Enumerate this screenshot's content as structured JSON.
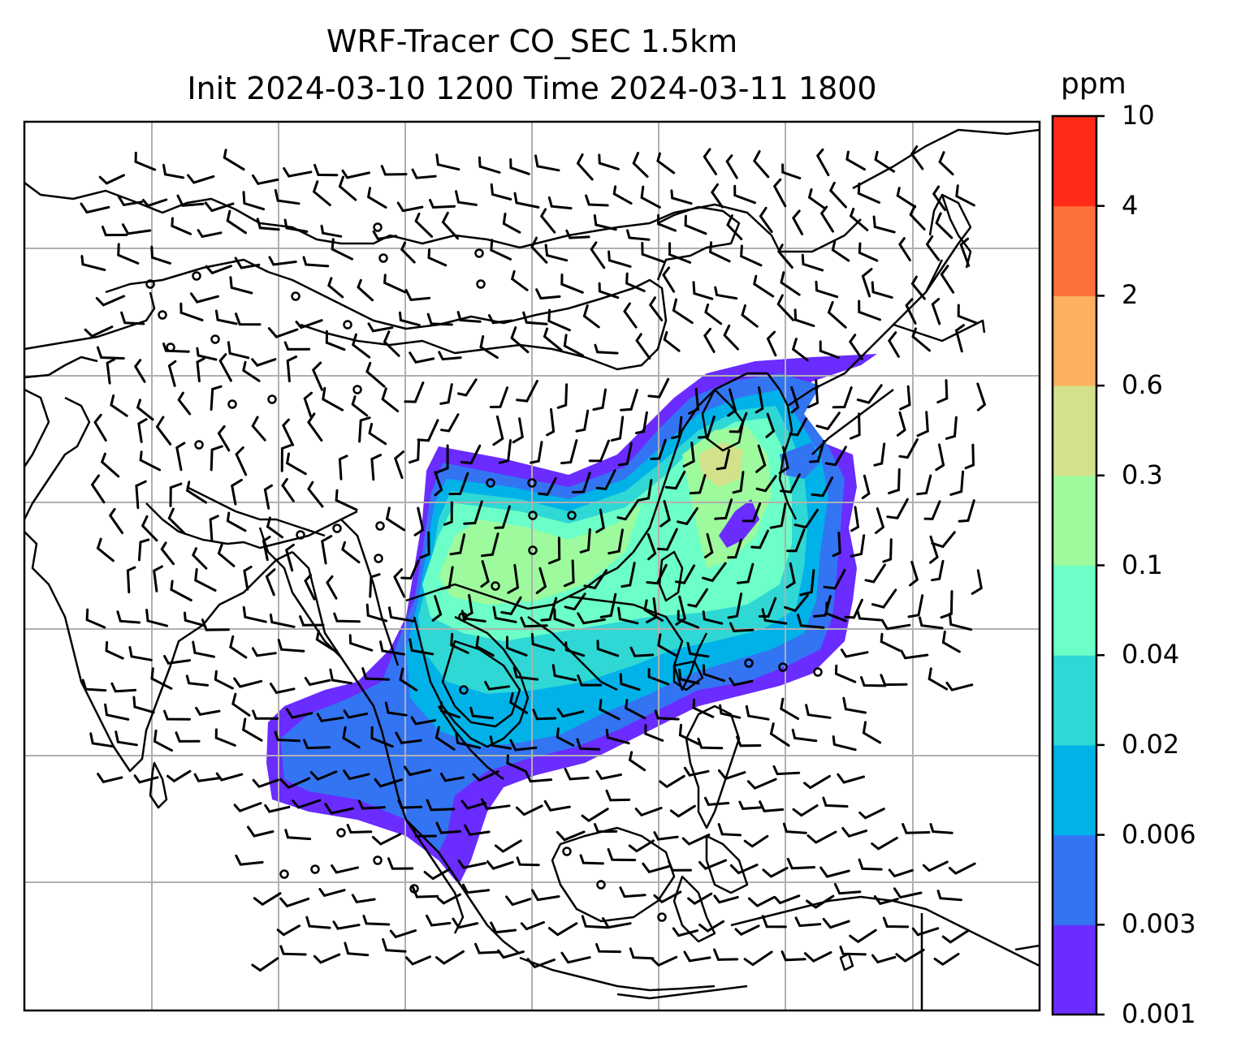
{
  "title_line1": "WRF-Tracer CO_SEC 1.5km",
  "title_line2": "Init 2024-03-10 1200 Time 2024-03-11 1800",
  "colorbar": {
    "unit": "ppm",
    "levels": [
      "0.001",
      "0.003",
      "0.006",
      "0.02",
      "0.04",
      "0.1",
      "0.3",
      "0.6",
      "2",
      "4",
      "10"
    ],
    "colors": [
      "#6a2cff",
      "#3374f3",
      "#00b2e8",
      "#2fd8d4",
      "#6cffc7",
      "#9dfa9d",
      "#d3e18a",
      "#fdb060",
      "#fd7138",
      "#ff2a18"
    ]
  },
  "map": {
    "coastline_color": "#000000",
    "grid_color": "#b0b0b0",
    "barb_color": "#000000",
    "station_marker": "open-circle"
  }
}
